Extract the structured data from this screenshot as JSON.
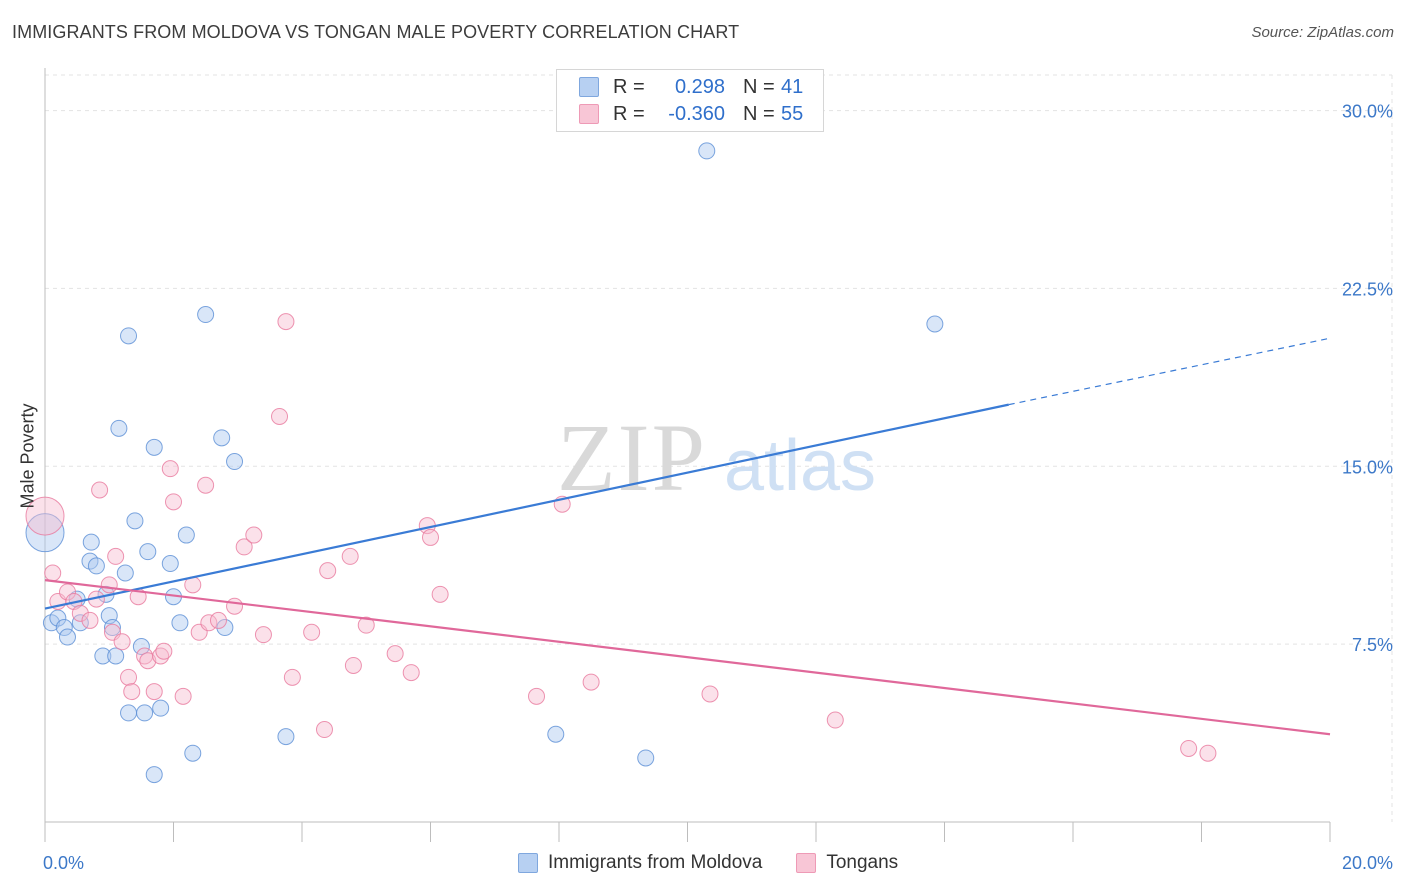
{
  "header": {
    "title": "IMMIGRANTS FROM MOLDOVA VS TONGAN MALE POVERTY CORRELATION CHART",
    "source": "Source: ZipAtlas.com"
  },
  "legend": {
    "rows": [
      {
        "r_label": "R =",
        "r_value": "0.298",
        "n_label": "N =",
        "n_value": "41",
        "color": "#7fa7de"
      },
      {
        "r_label": "R =",
        "r_value": "-0.360",
        "n_label": "N =",
        "n_value": "55",
        "color": "#ee9ab6"
      }
    ]
  },
  "bottom_legend": {
    "items": [
      {
        "label": "Immigrants from Moldova",
        "color": "#7fa7de"
      },
      {
        "label": "Tongans",
        "color": "#ee9ab6"
      }
    ]
  },
  "watermark": {
    "zip": "ZIP",
    "atlas": "atlas"
  },
  "chart_data": {
    "type": "scatter",
    "title": "IMMIGRANTS FROM MOLDOVA VS TONGAN MALE POVERTY CORRELATION CHART",
    "xlabel": "",
    "ylabel": "Male Poverty",
    "xlim": [
      0,
      20
    ],
    "ylim": [
      0,
      31.5
    ],
    "x_tick_labels": [
      "0.0%",
      "20.0%"
    ],
    "y_ticks": [
      7.5,
      15.0,
      22.5,
      30.0
    ],
    "y_tick_labels": [
      "7.5%",
      "15.0%",
      "22.5%",
      "30.0%"
    ],
    "grid": true,
    "series": [
      {
        "name": "Immigrants from Moldova",
        "color": "#5b8fd6",
        "fill": "#aac8ef",
        "points": [
          [
            0.0,
            12.2,
            1
          ],
          [
            0.1,
            8.4,
            0
          ],
          [
            0.2,
            8.6,
            0
          ],
          [
            0.3,
            8.2,
            0
          ],
          [
            0.35,
            7.8,
            0
          ],
          [
            0.5,
            9.4,
            0
          ],
          [
            0.55,
            8.4,
            0
          ],
          [
            0.7,
            11.0,
            0
          ],
          [
            0.72,
            11.8,
            0
          ],
          [
            0.8,
            10.8,
            0
          ],
          [
            0.9,
            7.0,
            0
          ],
          [
            0.95,
            9.6,
            0
          ],
          [
            1.0,
            8.7,
            0
          ],
          [
            1.05,
            8.2,
            0
          ],
          [
            1.1,
            7.0,
            0
          ],
          [
            1.15,
            16.6,
            0
          ],
          [
            1.25,
            10.5,
            0
          ],
          [
            1.3,
            4.6,
            0
          ],
          [
            1.3,
            20.5,
            0
          ],
          [
            1.4,
            12.7,
            0
          ],
          [
            1.5,
            7.4,
            0
          ],
          [
            1.55,
            4.6,
            0
          ],
          [
            1.6,
            11.4,
            0
          ],
          [
            1.7,
            2.0,
            0
          ],
          [
            1.7,
            15.8,
            0
          ],
          [
            1.8,
            4.8,
            0
          ],
          [
            1.95,
            10.9,
            0
          ],
          [
            2.0,
            9.5,
            0
          ],
          [
            2.1,
            8.4,
            0
          ],
          [
            2.2,
            12.1,
            0
          ],
          [
            2.3,
            2.9,
            0
          ],
          [
            2.5,
            21.4,
            0
          ],
          [
            2.75,
            16.2,
            0
          ],
          [
            2.8,
            8.2,
            0
          ],
          [
            2.95,
            15.2,
            0
          ],
          [
            3.75,
            3.6,
            0
          ],
          [
            7.95,
            3.7,
            0
          ],
          [
            9.35,
            2.7,
            0
          ],
          [
            10.3,
            28.3,
            0
          ],
          [
            13.85,
            21.0,
            0
          ]
        ]
      },
      {
        "name": "Tongans",
        "color": "#e8799d",
        "fill": "#f6bcd0",
        "points": [
          [
            0.0,
            12.9,
            1
          ],
          [
            0.12,
            10.5,
            0
          ],
          [
            0.2,
            9.3,
            0
          ],
          [
            0.35,
            9.7,
            0
          ],
          [
            0.45,
            9.3,
            0
          ],
          [
            0.55,
            8.8,
            0
          ],
          [
            0.7,
            8.5,
            0
          ],
          [
            0.8,
            9.4,
            0
          ],
          [
            0.85,
            14.0,
            0
          ],
          [
            1.0,
            10.0,
            0
          ],
          [
            1.05,
            8.0,
            0
          ],
          [
            1.1,
            11.2,
            0
          ],
          [
            1.2,
            7.6,
            0
          ],
          [
            1.3,
            6.1,
            0
          ],
          [
            1.35,
            5.5,
            0
          ],
          [
            1.45,
            9.5,
            0
          ],
          [
            1.55,
            7.0,
            0
          ],
          [
            1.6,
            6.8,
            0
          ],
          [
            1.7,
            5.5,
            0
          ],
          [
            1.8,
            7.0,
            0
          ],
          [
            1.85,
            7.2,
            0
          ],
          [
            1.95,
            14.9,
            0
          ],
          [
            2.0,
            13.5,
            0
          ],
          [
            2.15,
            5.3,
            0
          ],
          [
            2.3,
            10.0,
            0
          ],
          [
            2.4,
            8.0,
            0
          ],
          [
            2.5,
            14.2,
            0
          ],
          [
            2.55,
            8.4,
            0
          ],
          [
            2.7,
            8.5,
            0
          ],
          [
            2.95,
            9.1,
            0
          ],
          [
            3.1,
            11.6,
            0
          ],
          [
            3.25,
            12.1,
            0
          ],
          [
            3.4,
            7.9,
            0
          ],
          [
            3.65,
            17.1,
            0
          ],
          [
            3.75,
            21.1,
            0
          ],
          [
            3.85,
            6.1,
            0
          ],
          [
            4.15,
            8.0,
            0
          ],
          [
            4.35,
            3.9,
            0
          ],
          [
            4.4,
            10.6,
            0
          ],
          [
            4.75,
            11.2,
            0
          ],
          [
            4.8,
            6.6,
            0
          ],
          [
            5.0,
            8.3,
            0
          ],
          [
            5.45,
            7.1,
            0
          ],
          [
            5.7,
            6.3,
            0
          ],
          [
            5.95,
            12.5,
            0
          ],
          [
            6.0,
            12.0,
            0
          ],
          [
            6.15,
            9.6,
            0
          ],
          [
            7.65,
            5.3,
            0
          ],
          [
            8.05,
            13.4,
            0
          ],
          [
            8.5,
            5.9,
            0
          ],
          [
            10.35,
            5.4,
            0
          ],
          [
            12.3,
            4.3,
            0
          ],
          [
            17.8,
            3.1,
            0
          ],
          [
            18.1,
            2.9,
            0
          ]
        ]
      }
    ],
    "trend_lines": [
      {
        "series": "Immigrants from Moldova",
        "x0": 0.0,
        "y0": 9.0,
        "x1": 15.0,
        "y1": 17.6,
        "dashed_to_x": 20.0,
        "dashed_to_y": 20.4,
        "color": "#3a7bd5"
      },
      {
        "series": "Tongans",
        "x0": 0.0,
        "y0": 10.2,
        "x1": 20.0,
        "y1": 3.7,
        "color": "#e0689a"
      }
    ]
  }
}
